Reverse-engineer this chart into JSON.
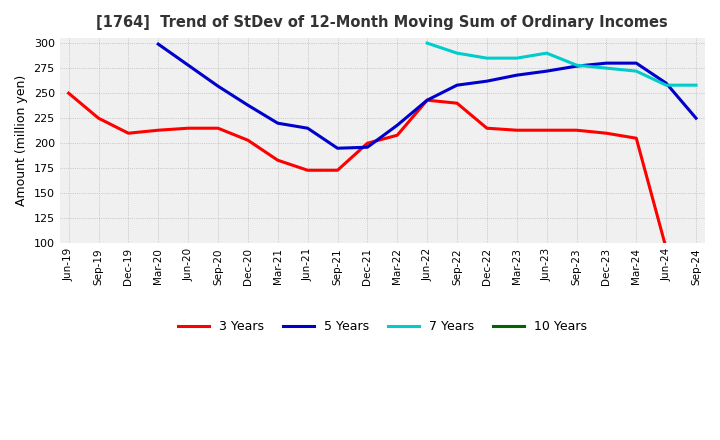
{
  "title": "[1764]  Trend of StDev of 12-Month Moving Sum of Ordinary Incomes",
  "ylabel": "Amount (million yen)",
  "ylim": [
    100,
    305
  ],
  "yticks": [
    100,
    125,
    150,
    175,
    200,
    225,
    250,
    275,
    300
  ],
  "line_colors": {
    "3yr": "#ff0000",
    "5yr": "#0000cc",
    "7yr": "#00cccc",
    "10yr": "#006600"
  },
  "legend_labels": [
    "3 Years",
    "5 Years",
    "7 Years",
    "10 Years"
  ],
  "x_labels": [
    "Jun-19",
    "Sep-19",
    "Dec-19",
    "Mar-20",
    "Jun-20",
    "Sep-20",
    "Dec-20",
    "Mar-21",
    "Jun-21",
    "Sep-21",
    "Dec-21",
    "Mar-22",
    "Jun-22",
    "Sep-22",
    "Dec-22",
    "Mar-23",
    "Jun-23",
    "Sep-23",
    "Dec-23",
    "Mar-24",
    "Jun-24",
    "Sep-24"
  ],
  "data_3yr": [
    250,
    225,
    210,
    213,
    215,
    215,
    203,
    183,
    173,
    173,
    200,
    208,
    243,
    240,
    215,
    213,
    213,
    213,
    210,
    205,
    95,
    null
  ],
  "data_5yr": [
    null,
    null,
    null,
    299,
    278,
    257,
    238,
    220,
    215,
    195,
    196,
    218,
    243,
    258,
    262,
    268,
    272,
    277,
    280,
    280,
    260,
    225
  ],
  "data_7yr": [
    null,
    null,
    null,
    null,
    null,
    null,
    null,
    null,
    null,
    null,
    null,
    null,
    300,
    290,
    285,
    285,
    290,
    278,
    275,
    272,
    258,
    258
  ],
  "data_10yr": [
    null,
    null,
    null,
    null,
    null,
    null,
    null,
    null,
    null,
    null,
    null,
    null,
    null,
    null,
    null,
    null,
    null,
    null,
    null,
    null,
    null,
    null
  ],
  "bg_color": "#f0f0f0",
  "grid_color": "#aaaaaa"
}
